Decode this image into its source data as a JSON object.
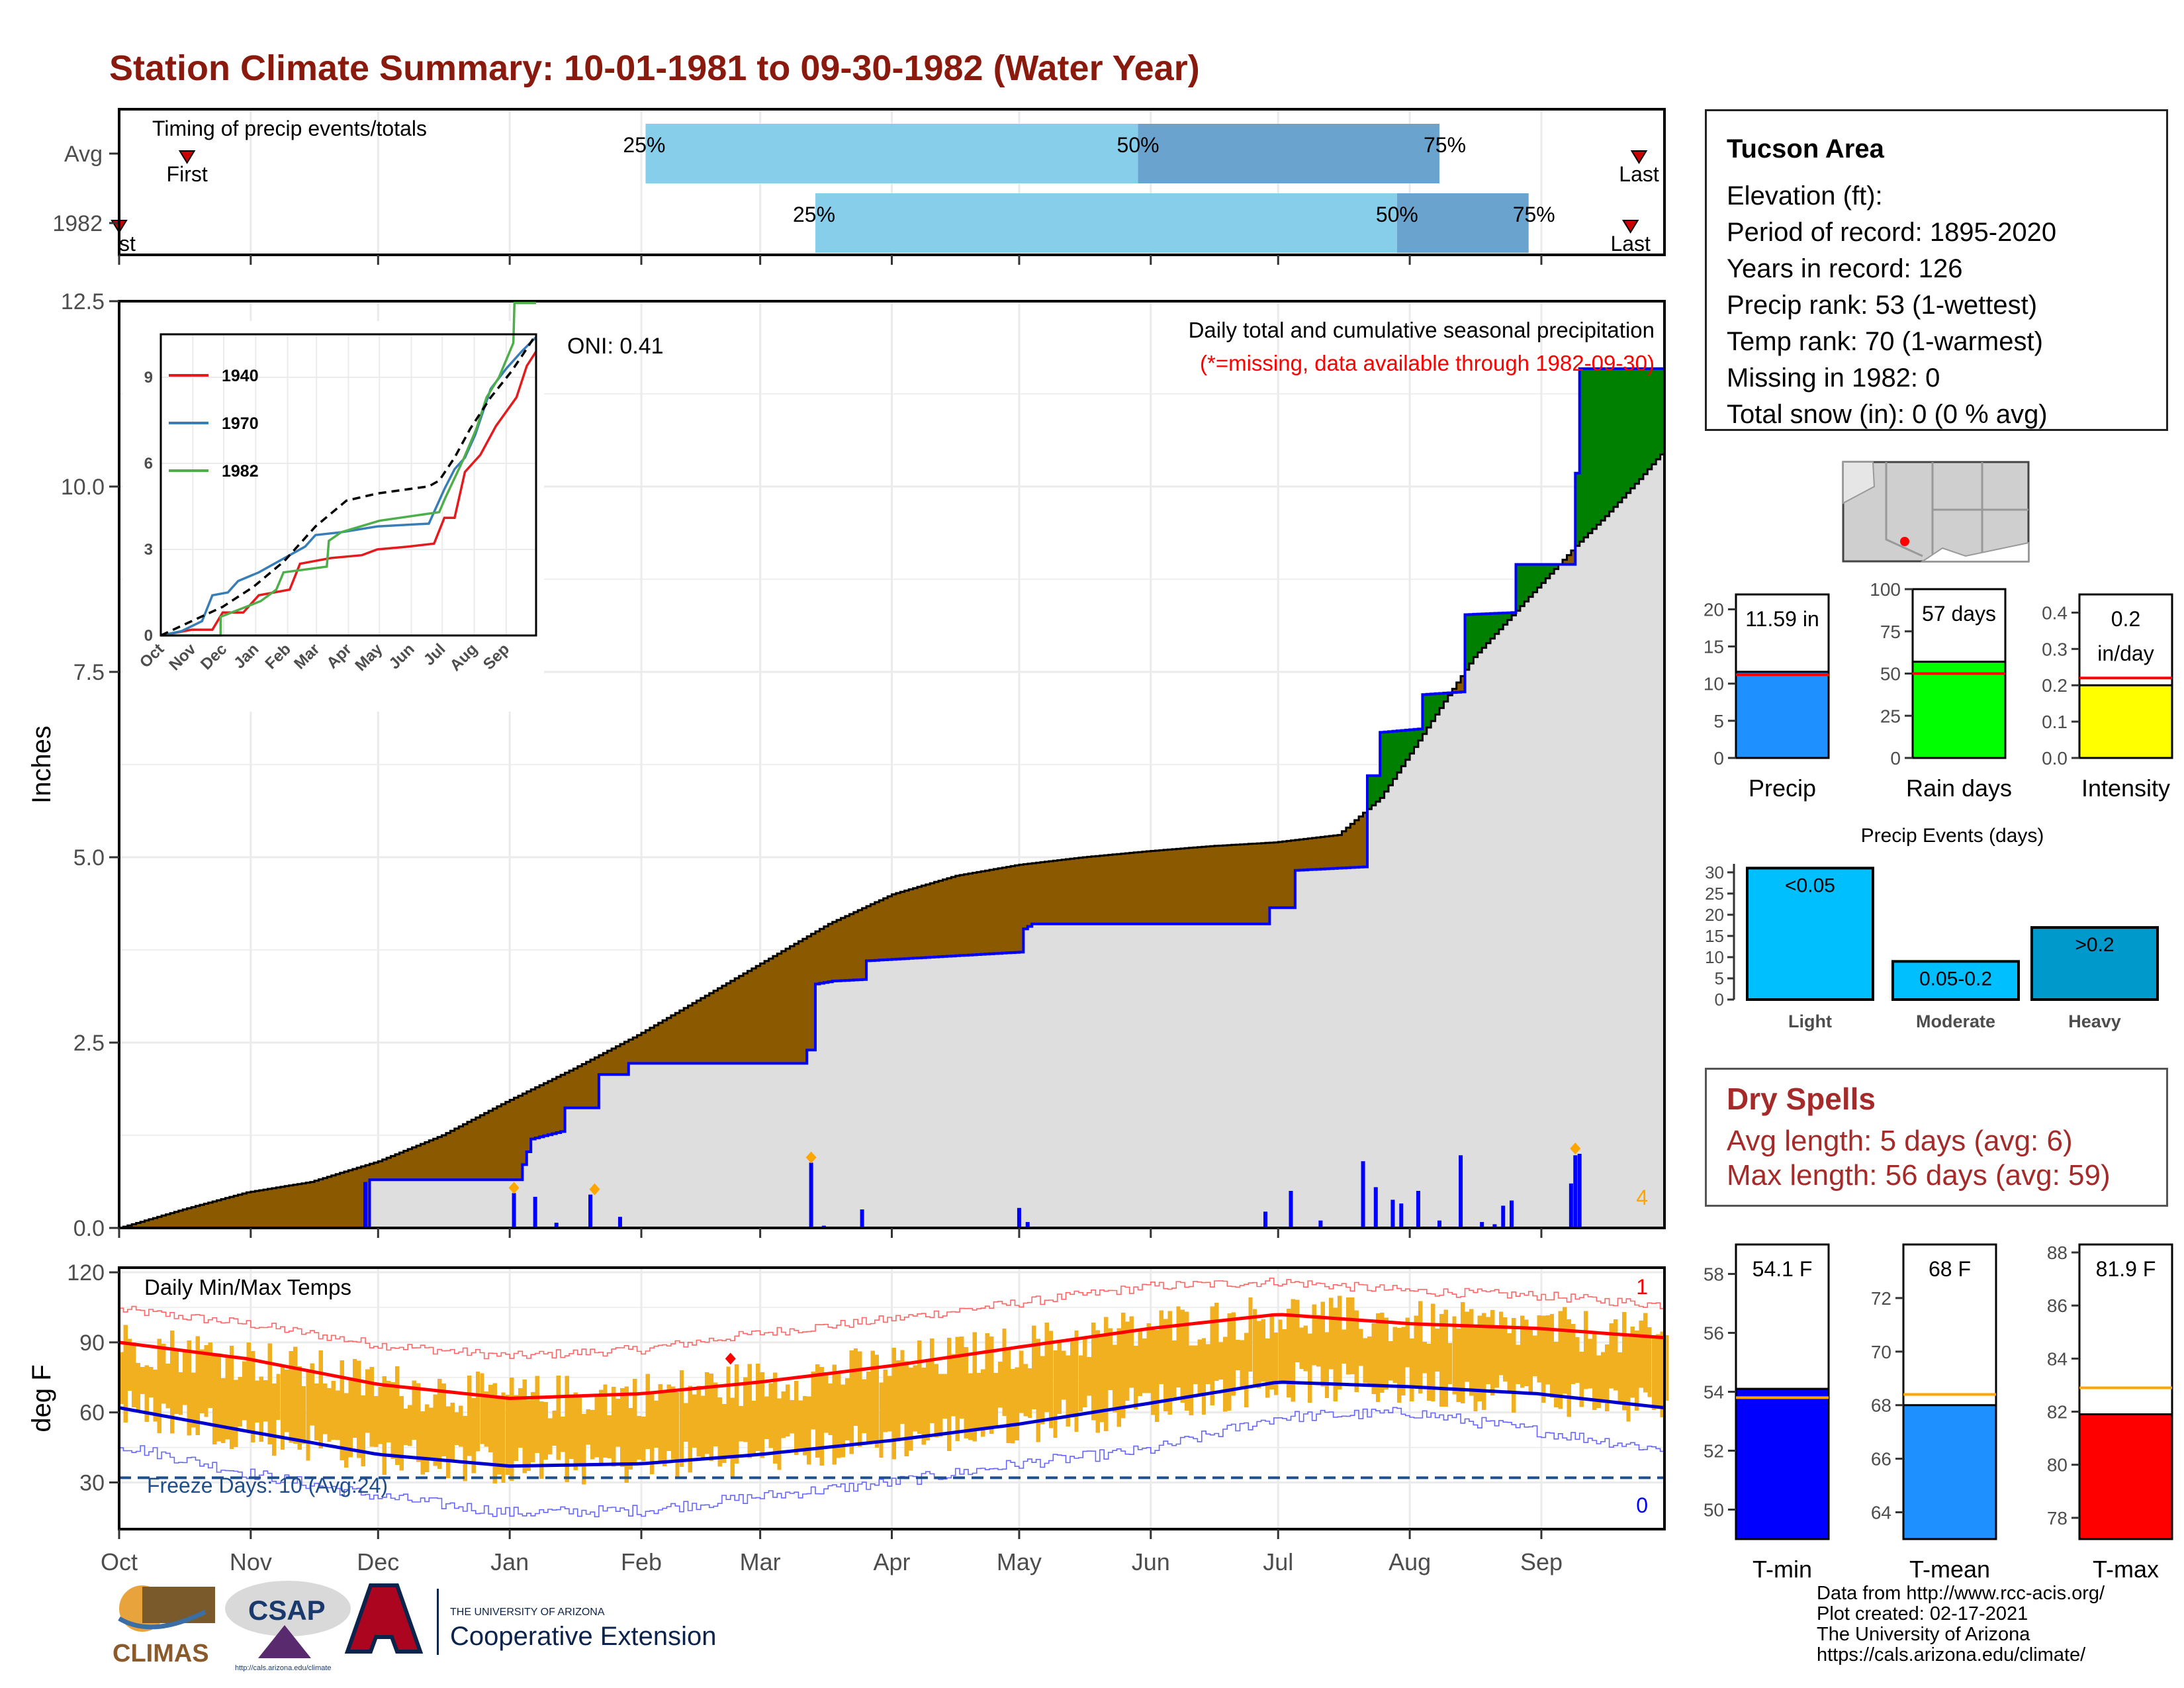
{
  "title": "Station Climate Summary: 10-01-1981 to 09-30-1982 (Water Year)",
  "info": {
    "station": "Tucson Area",
    "lines": [
      "Elevation (ft):",
      "Period of record: 1895-2020",
      "Years in record: 126",
      "Precip rank: 53 (1-wettest)",
      "Temp rank: 70 (1-warmest)",
      "Missing in 1982: 0",
      "Total snow (in): 0 (0 % avg)"
    ]
  },
  "dry_spells": {
    "title": "Dry Spells",
    "avg": "Avg length: 5 days (avg: 6)",
    "max": "Max length: 56 days (avg: 59)"
  },
  "credits": [
    "Data from http://www.rcc-acis.org/",
    "Plot created: 02-17-2021",
    "The University of Arizona",
    "https://cals.arizona.edu/climate/"
  ],
  "logos": {
    "climas": "CLIMAS",
    "csap": "CSAP",
    "csap_url": "http://cals.arizona.edu/climate",
    "ua_small": "THE UNIVERSITY OF ARIZONA",
    "ua_big": "Cooperative Extension"
  },
  "colors": {
    "title": "#8b1a0e",
    "avg_fill": "#8b5a00",
    "surplus_fill": "#008000",
    "cum_line": "#0000ff",
    "bar_light": "#87ceeb",
    "bar_dark": "#6aa3cd",
    "temp_bar": "#f0b020",
    "tmax_avg": "#ff0000",
    "tmin_avg": "#0000cd"
  },
  "chart_data": [
    {
      "type": "bar",
      "panel": "timing",
      "title": "Timing of precip events/totals",
      "categories": [
        "Avg",
        "1982"
      ],
      "first_label": "First",
      "last_label": "Last",
      "first_label_1982": "st",
      "rows": [
        {
          "name": "Avg",
          "first_day": 16,
          "q25_day": 124,
          "q50_day": 240,
          "q75_day": 311,
          "last_day": 358
        },
        {
          "name": "1982",
          "first_day": 0,
          "q25_day": 164,
          "q50_day": 301,
          "q75_day": 332,
          "last_day": 356
        }
      ],
      "quantile_labels": [
        "25%",
        "50%",
        "75%"
      ]
    },
    {
      "type": "area",
      "panel": "precipitation",
      "title": "Daily total and cumulative seasonal precipitation",
      "subtitle": "(*=missing, data available through 1982-09-30)",
      "ylabel": "Inches",
      "ylim": [
        0,
        12.5
      ],
      "yticks": [
        "0.0",
        "2.5",
        "5.0",
        "7.5",
        "10.0",
        "12.5"
      ],
      "xticks": [
        "Oct",
        "Nov",
        "Dec",
        "Jan",
        "Feb",
        "Mar",
        "Apr",
        "May",
        "Jun",
        "Jul",
        "Aug",
        "Sep"
      ],
      "oni": "ONI: 0.41",
      "corner_count": "4",
      "avg_cumulative": [
        [
          0,
          0
        ],
        [
          15,
          0.25
        ],
        [
          30,
          0.48
        ],
        [
          45,
          0.62
        ],
        [
          61,
          0.9
        ],
        [
          76,
          1.25
        ],
        [
          91,
          1.7
        ],
        [
          107,
          2.15
        ],
        [
          122,
          2.6
        ],
        [
          137,
          3.1
        ],
        [
          152,
          3.6
        ],
        [
          167,
          4.1
        ],
        [
          182,
          4.5
        ],
        [
          197,
          4.75
        ],
        [
          212,
          4.9
        ],
        [
          227,
          5.0
        ],
        [
          242,
          5.08
        ],
        [
          257,
          5.15
        ],
        [
          272,
          5.2
        ],
        [
          287,
          5.3
        ],
        [
          297,
          5.8
        ],
        [
          304,
          6.4
        ],
        [
          312,
          7.1
        ],
        [
          319,
          7.7
        ],
        [
          327,
          8.2
        ],
        [
          335,
          8.7
        ],
        [
          343,
          9.2
        ],
        [
          350,
          9.6
        ],
        [
          358,
          10.1
        ],
        [
          364,
          10.5
        ]
      ],
      "cumulative_1982": [
        [
          0,
          0
        ],
        [
          58,
          0
        ],
        [
          58,
          0.65
        ],
        [
          94,
          0.65
        ],
        [
          94,
          0.68
        ],
        [
          97,
          1.2
        ],
        [
          104,
          1.3
        ],
        [
          104,
          1.62
        ],
        [
          112,
          1.62
        ],
        [
          112,
          2.07
        ],
        [
          119,
          2.07
        ],
        [
          119,
          2.22
        ],
        [
          161,
          2.22
        ],
        [
          161,
          2.4
        ],
        [
          163,
          2.4
        ],
        [
          163,
          3.28
        ],
        [
          168,
          3.33
        ],
        [
          175,
          3.35
        ],
        [
          175,
          3.6
        ],
        [
          212,
          3.72
        ],
        [
          212,
          4.0
        ],
        [
          215,
          4.1
        ],
        [
          270,
          4.1
        ],
        [
          270,
          4.32
        ],
        [
          276,
          4.32
        ],
        [
          276,
          4.82
        ],
        [
          293,
          4.87
        ],
        [
          293,
          6.1
        ],
        [
          296,
          6.1
        ],
        [
          296,
          6.68
        ],
        [
          306,
          6.73
        ],
        [
          306,
          7.19
        ],
        [
          316,
          7.23
        ],
        [
          316,
          8.27
        ],
        [
          328,
          8.3
        ],
        [
          328,
          8.95
        ],
        [
          342,
          8.95
        ],
        [
          342,
          9.85
        ],
        [
          343,
          10.18
        ],
        [
          343,
          11.59
        ],
        [
          364,
          11.59
        ]
      ],
      "daily_bars": [
        [
          58,
          0.62
        ],
        [
          93,
          0.47
        ],
        [
          98,
          0.42
        ],
        [
          103,
          0.07
        ],
        [
          111,
          0.45
        ],
        [
          118,
          0.15
        ],
        [
          163,
          0.88
        ],
        [
          166,
          0.03
        ],
        [
          175,
          0.25
        ],
        [
          212,
          0.27
        ],
        [
          214,
          0.08
        ],
        [
          270,
          0.22
        ],
        [
          276,
          0.5
        ],
        [
          283,
          0.1
        ],
        [
          293,
          0.9
        ],
        [
          296,
          0.55
        ],
        [
          300,
          0.38
        ],
        [
          302,
          0.33
        ],
        [
          306,
          0.5
        ],
        [
          311,
          0.1
        ],
        [
          316,
          0.98
        ],
        [
          321,
          0.08
        ],
        [
          324,
          0.05
        ],
        [
          326,
          0.3
        ],
        [
          328,
          0.37
        ],
        [
          342,
          0.6
        ],
        [
          343,
          0.98
        ],
        [
          344,
          1.0
        ]
      ],
      "diamond_days": [
        93,
        112,
        163,
        343
      ]
    },
    {
      "type": "line",
      "panel": "inset",
      "series": [
        {
          "name": "1940",
          "color": "#e41a1c"
        },
        {
          "name": "1970",
          "color": "#377eb8"
        },
        {
          "name": "1982",
          "color": "#4daf4a"
        }
      ],
      "yticks": [
        "0",
        "3",
        "6",
        "9"
      ],
      "ylim": [
        0,
        10.5
      ],
      "xticks": [
        "Oct",
        "Nov",
        "Dec",
        "Jan",
        "Feb",
        "Mar",
        "Apr",
        "May",
        "Jun",
        "Jul",
        "Aug",
        "Sep"
      ],
      "avg_line": [
        [
          0,
          0
        ],
        [
          30,
          0.5
        ],
        [
          60,
          1.0
        ],
        [
          90,
          1.7
        ],
        [
          120,
          2.6
        ],
        [
          150,
          3.8
        ],
        [
          180,
          4.7
        ],
        [
          210,
          4.95
        ],
        [
          240,
          5.1
        ],
        [
          260,
          5.2
        ],
        [
          270,
          5.4
        ],
        [
          285,
          6.2
        ],
        [
          300,
          7.2
        ],
        [
          320,
          8.3
        ],
        [
          340,
          9.2
        ],
        [
          355,
          10.0
        ],
        [
          364,
          10.5
        ]
      ],
      "values_1940": [
        [
          0,
          0
        ],
        [
          30,
          0.2
        ],
        [
          50,
          0.2
        ],
        [
          60,
          0.8
        ],
        [
          80,
          0.8
        ],
        [
          95,
          1.4
        ],
        [
          125,
          1.6
        ],
        [
          135,
          2.5
        ],
        [
          150,
          2.6
        ],
        [
          165,
          2.7
        ],
        [
          195,
          2.8
        ],
        [
          210,
          3.0
        ],
        [
          240,
          3.1
        ],
        [
          265,
          3.2
        ],
        [
          275,
          4.1
        ],
        [
          285,
          4.1
        ],
        [
          295,
          5.7
        ],
        [
          310,
          6.3
        ],
        [
          325,
          7.3
        ],
        [
          345,
          8.3
        ],
        [
          355,
          9.4
        ],
        [
          364,
          9.9
        ]
      ],
      "values_1970": [
        [
          0,
          0
        ],
        [
          20,
          0.15
        ],
        [
          40,
          0.5
        ],
        [
          50,
          1.4
        ],
        [
          65,
          1.5
        ],
        [
          75,
          1.9
        ],
        [
          95,
          2.2
        ],
        [
          125,
          2.8
        ],
        [
          140,
          3.1
        ],
        [
          150,
          3.5
        ],
        [
          175,
          3.6
        ],
        [
          210,
          3.8
        ],
        [
          260,
          3.9
        ],
        [
          275,
          5.1
        ],
        [
          285,
          5.8
        ],
        [
          295,
          6.2
        ],
        [
          305,
          7.0
        ],
        [
          320,
          8.6
        ],
        [
          335,
          9.3
        ],
        [
          350,
          9.9
        ],
        [
          364,
          10.4
        ]
      ],
      "values_1982": [
        [
          0,
          0
        ],
        [
          58,
          0
        ],
        [
          58,
          0.65
        ],
        [
          97,
          1.2
        ],
        [
          112,
          1.6
        ],
        [
          119,
          2.2
        ],
        [
          161,
          2.4
        ],
        [
          163,
          3.3
        ],
        [
          175,
          3.6
        ],
        [
          212,
          4.0
        ],
        [
          270,
          4.3
        ],
        [
          276,
          4.8
        ],
        [
          293,
          6.1
        ],
        [
          306,
          7.2
        ],
        [
          316,
          8.3
        ],
        [
          328,
          9.0
        ],
        [
          342,
          10.2
        ],
        [
          343,
          11.59
        ],
        [
          364,
          11.59
        ]
      ]
    },
    {
      "type": "bar",
      "panel": "temperatures",
      "title": "Daily Min/Max Temps",
      "ylabel": "deg F",
      "ylim": [
        10,
        122
      ],
      "yticks": [
        "30",
        "60",
        "90",
        "120"
      ],
      "xticks": [
        "Oct",
        "Nov",
        "Dec",
        "Jan",
        "Feb",
        "Mar",
        "Apr",
        "May",
        "Jun",
        "Jul",
        "Aug",
        "Sep"
      ],
      "freeze_label": "Freeze Days: 10 (Avg:24)",
      "freeze_threshold": 32,
      "record_high_count": "1",
      "record_low_count": "0",
      "avg_max": [
        [
          0,
          90
        ],
        [
          30,
          83
        ],
        [
          61,
          72
        ],
        [
          92,
          66
        ],
        [
          123,
          68
        ],
        [
          151,
          73
        ],
        [
          182,
          80
        ],
        [
          212,
          88
        ],
        [
          243,
          96
        ],
        [
          273,
          102
        ],
        [
          304,
          98
        ],
        [
          334,
          96
        ],
        [
          364,
          92
        ]
      ],
      "avg_min": [
        [
          0,
          62
        ],
        [
          30,
          52
        ],
        [
          61,
          42
        ],
        [
          92,
          37
        ],
        [
          123,
          38
        ],
        [
          151,
          42
        ],
        [
          182,
          48
        ],
        [
          212,
          55
        ],
        [
          243,
          64
        ],
        [
          273,
          73
        ],
        [
          304,
          71
        ],
        [
          334,
          68
        ],
        [
          364,
          62
        ]
      ],
      "record_max": [
        [
          0,
          104
        ],
        [
          30,
          98
        ],
        [
          61,
          89
        ],
        [
          92,
          84
        ],
        [
          123,
          87
        ],
        [
          151,
          94
        ],
        [
          182,
          100
        ],
        [
          212,
          107
        ],
        [
          243,
          114
        ],
        [
          273,
          116
        ],
        [
          304,
          112
        ],
        [
          334,
          110
        ],
        [
          364,
          106
        ]
      ],
      "record_min": [
        [
          0,
          46
        ],
        [
          30,
          34
        ],
        [
          61,
          24
        ],
        [
          92,
          17
        ],
        [
          123,
          18
        ],
        [
          151,
          24
        ],
        [
          182,
          30
        ],
        [
          212,
          38
        ],
        [
          243,
          44
        ],
        [
          273,
          58
        ],
        [
          304,
          60
        ],
        [
          334,
          52
        ],
        [
          364,
          44
        ]
      ]
    },
    {
      "type": "bar",
      "panel": "precip_summary",
      "categories": [
        "Precip",
        "Rain days",
        "Intensity"
      ],
      "values": [
        11.59,
        57,
        0.2
      ],
      "averages": [
        11.2,
        50,
        0.22
      ],
      "labels": [
        "11.59 in",
        "57 days",
        "0.2 in/day"
      ],
      "label_line1": [
        "11.59 in",
        "57 days",
        "0.2"
      ],
      "label_line2": [
        "",
        "",
        "in/day"
      ],
      "ylims": [
        [
          0,
          22
        ],
        [
          0,
          100
        ],
        [
          0,
          0.45
        ]
      ],
      "yticks": [
        [
          "0",
          "5",
          "10",
          "15",
          "20"
        ],
        [
          "0",
          "25",
          "50",
          "75",
          "100"
        ],
        [
          "0.0",
          "0.1",
          "0.2",
          "0.3",
          "0.4"
        ]
      ],
      "colors": [
        "#1e90ff",
        "#00ff00",
        "#ffff00"
      ]
    },
    {
      "type": "bar",
      "panel": "precip_events",
      "title": "Precip Events (days)",
      "categories": [
        "Light",
        "Moderate",
        "Heavy"
      ],
      "bar_labels": [
        "<0.05",
        "0.05-0.2",
        ">0.2"
      ],
      "values": [
        31,
        9,
        17
      ],
      "ylim": [
        0,
        32
      ],
      "yticks": [
        "0",
        "5",
        "10",
        "15",
        "20",
        "25",
        "30"
      ],
      "colors": [
        "#00bfff",
        "#00bfff",
        "#0099cc"
      ]
    },
    {
      "type": "bar",
      "panel": "temperature_summary",
      "categories": [
        "T-min",
        "T-mean",
        "T-max"
      ],
      "values": [
        54.1,
        68,
        81.9
      ],
      "averages": [
        53.8,
        68.4,
        82.9
      ],
      "labels": [
        "54.1 F",
        "68 F",
        "81.9 F"
      ],
      "ylims": [
        [
          49,
          59
        ],
        [
          63,
          74
        ],
        [
          77.2,
          88.3
        ]
      ],
      "yticks": [
        [
          "50",
          "52",
          "54",
          "56",
          "58"
        ],
        [
          "64",
          "66",
          "68",
          "70",
          "72"
        ],
        [
          "78",
          "80",
          "82",
          "84",
          "86",
          "88"
        ]
      ],
      "colors": [
        "#0000ff",
        "#1e90ff",
        "#ff0000"
      ]
    }
  ]
}
